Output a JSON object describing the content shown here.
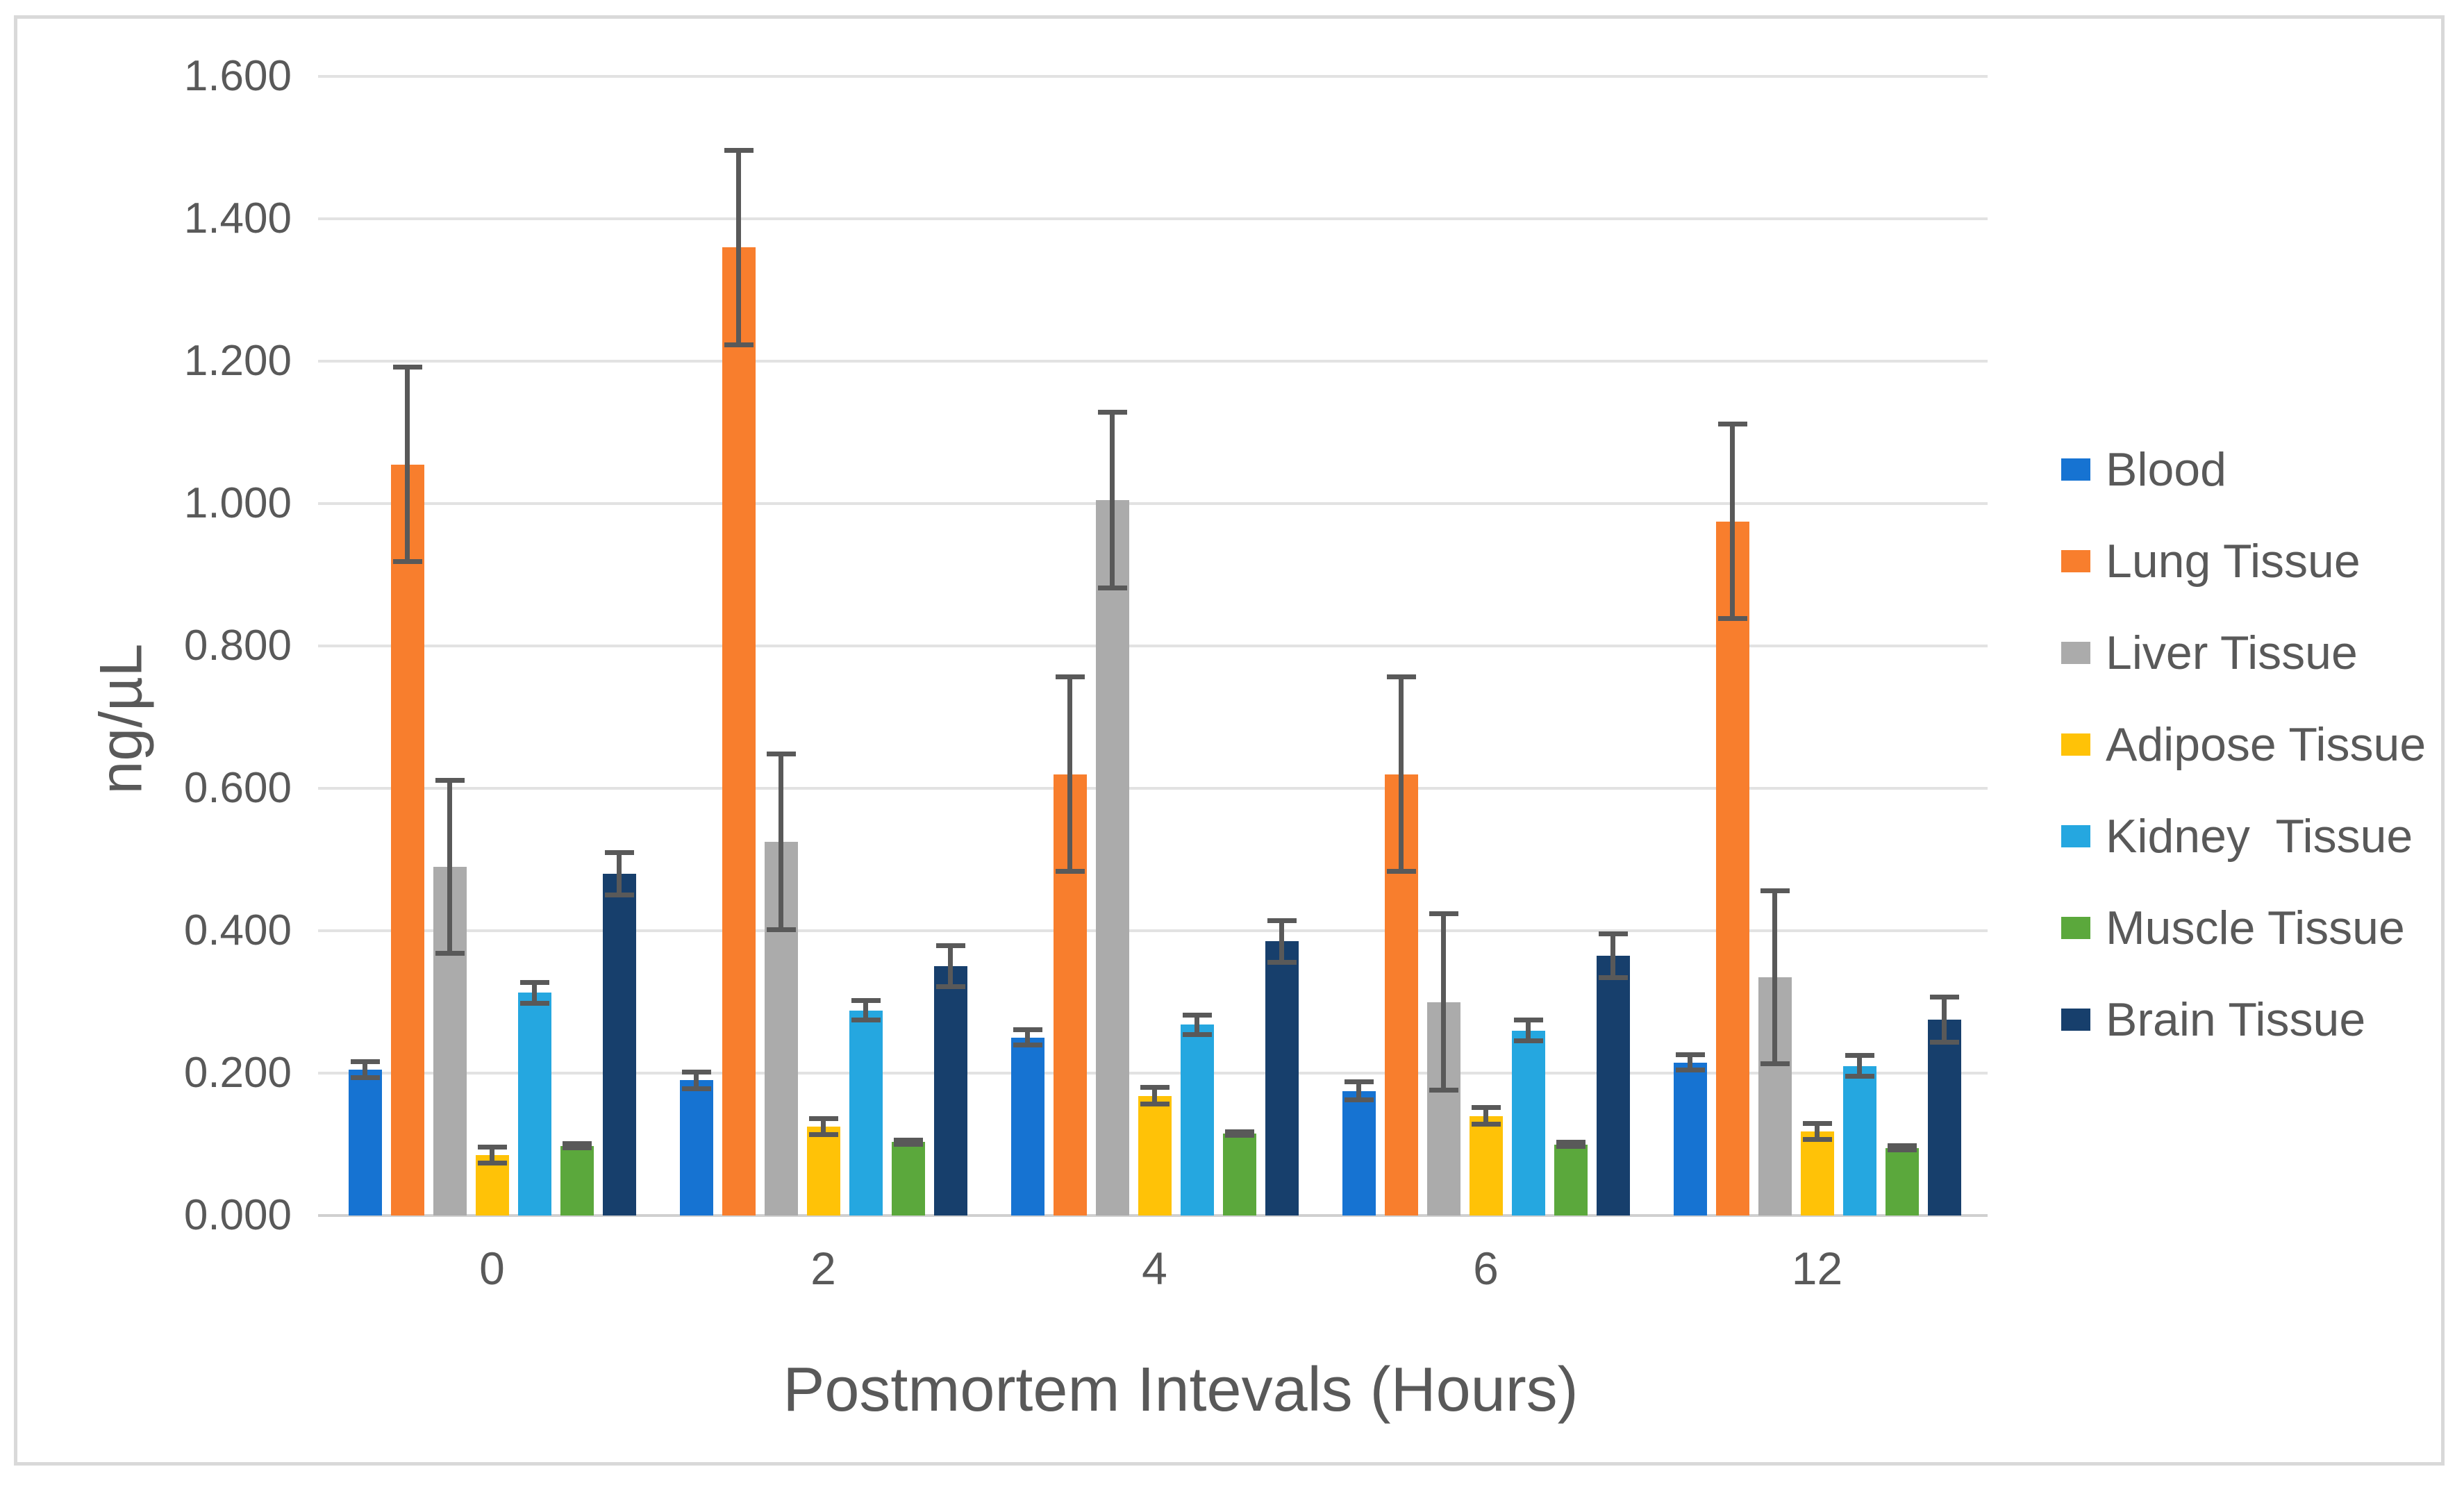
{
  "chart_data": {
    "type": "bar",
    "title": "",
    "xlabel": "Postmortem Intevals (Hours)",
    "ylabel": "ng/µL",
    "categories": [
      "0",
      "2",
      "4",
      "6",
      "12"
    ],
    "ylim": [
      0,
      1.6
    ],
    "ytick_step": 0.2,
    "ytick_labels": [
      "0.000",
      "0.200",
      "0.400",
      "0.600",
      "0.800",
      "1.000",
      "1.200",
      "1.400",
      "1.600"
    ],
    "grid": true,
    "legend_position": "right",
    "error_bars": true,
    "series": [
      {
        "name": "Blood",
        "color": "#1673d2",
        "values": [
          0.205,
          0.19,
          0.25,
          0.175,
          0.215
        ],
        "errors": [
          0.015,
          0.015,
          0.014,
          0.016,
          0.014
        ]
      },
      {
        "name": "Lung Tissue",
        "color": "#f87e2d",
        "values": [
          1.055,
          1.36,
          0.62,
          0.62,
          0.975
        ],
        "errors": [
          0.14,
          0.14,
          0.14,
          0.14,
          0.14
        ]
      },
      {
        "name": "Liver Tissue",
        "color": "#ababab",
        "values": [
          0.49,
          0.525,
          1.005,
          0.3,
          0.335
        ],
        "errors": [
          0.125,
          0.127,
          0.127,
          0.127,
          0.125
        ]
      },
      {
        "name": "Adipose Tissue",
        "color": "#ffc207",
        "values": [
          0.085,
          0.125,
          0.168,
          0.14,
          0.118
        ],
        "errors": [
          0.015,
          0.015,
          0.015,
          0.015,
          0.015
        ]
      },
      {
        "name": "Kidney  Tissue",
        "color": "#25a7e0",
        "values": [
          0.313,
          0.288,
          0.268,
          0.26,
          0.21
        ],
        "errors": [
          0.018,
          0.017,
          0.017,
          0.018,
          0.018
        ]
      },
      {
        "name": "Muscle Tissue",
        "color": "#5ba83c",
        "values": [
          0.098,
          0.103,
          0.115,
          0.1,
          0.095
        ],
        "errors": [
          0.006,
          0.006,
          0.006,
          0.006,
          0.006
        ]
      },
      {
        "name": "Brain Tissue",
        "color": "#173f6c",
        "values": [
          0.48,
          0.35,
          0.385,
          0.365,
          0.275
        ],
        "errors": [
          0.033,
          0.032,
          0.033,
          0.034,
          0.035
        ]
      }
    ]
  },
  "style_colors": {
    "text": "#595959",
    "gridline": "#e2e2e2",
    "axis_line": "#d0d0d0",
    "error_bar": "#595959",
    "frame_border": "#d9d9d9",
    "background": "#ffffff"
  }
}
